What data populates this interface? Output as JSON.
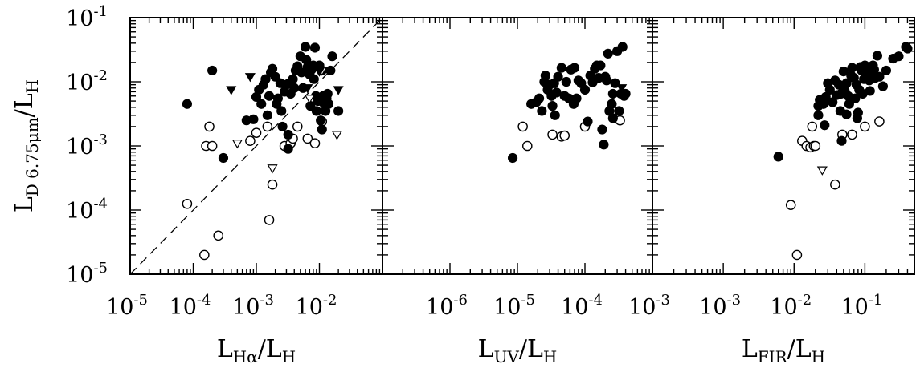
{
  "chart_data": [
    {
      "type": "scatter",
      "x_scale": "log",
      "y_scale": "log",
      "xlim": [
        1e-05,
        0.1
      ],
      "ylim": [
        1e-05,
        0.1
      ],
      "xticks": [
        {
          "value": 1e-05,
          "base": "10",
          "exp": "-5"
        },
        {
          "value": 0.0001,
          "base": "10",
          "exp": "-4"
        },
        {
          "value": 0.001,
          "base": "10",
          "exp": "-3"
        },
        {
          "value": 0.01,
          "base": "10",
          "exp": "-2"
        }
      ],
      "yticks": [
        {
          "value": 1e-05,
          "base": "10",
          "exp": "-5"
        },
        {
          "value": 0.0001,
          "base": "10",
          "exp": "-4"
        },
        {
          "value": 0.001,
          "base": "10",
          "exp": "-3"
        },
        {
          "value": 0.01,
          "base": "10",
          "exp": "-2"
        },
        {
          "value": 0.1,
          "base": "10",
          "exp": "-1"
        }
      ],
      "xlabel": {
        "pre": "L",
        "sub": "Hα",
        "post": "/L",
        "sub2": "H"
      },
      "ylabel": {
        "pre": "L",
        "sub": "D 6.75μm",
        "post": "/L",
        "sub2": "H"
      },
      "reference_line": "y = x",
      "filled": [
        [
          8e-05,
          0.0045
        ],
        [
          0.0002,
          0.015
        ],
        [
          0.0003,
          0.00065
        ],
        [
          0.0007,
          0.0025
        ],
        [
          0.0009,
          0.0026
        ],
        [
          0.001,
          0.0058
        ],
        [
          0.0011,
          0.0075
        ],
        [
          0.0012,
          0.0045
        ],
        [
          0.0013,
          0.009
        ],
        [
          0.0014,
          0.011
        ],
        [
          0.0015,
          0.003
        ],
        [
          0.0016,
          0.006
        ],
        [
          0.0017,
          0.014
        ],
        [
          0.0018,
          0.016
        ],
        [
          0.002,
          0.012
        ],
        [
          0.0021,
          0.0045
        ],
        [
          0.0022,
          0.0055
        ],
        [
          0.0024,
          0.0095
        ],
        [
          0.0025,
          0.0035
        ],
        [
          0.0026,
          0.002
        ],
        [
          0.0028,
          0.007
        ],
        [
          0.003,
          0.009
        ],
        [
          0.0032,
          0.0015
        ],
        [
          0.0033,
          0.0095
        ],
        [
          0.0035,
          0.0065
        ],
        [
          0.0038,
          0.011
        ],
        [
          0.004,
          0.008
        ],
        [
          0.0042,
          0.015
        ],
        [
          0.0045,
          0.0175
        ],
        [
          0.005,
          0.025
        ],
        [
          0.0052,
          0.014
        ],
        [
          0.0055,
          0.008
        ],
        [
          0.006,
          0.035
        ],
        [
          0.0062,
          0.022
        ],
        [
          0.0065,
          0.017
        ],
        [
          0.007,
          0.013
        ],
        [
          0.0072,
          0.0042
        ],
        [
          0.0075,
          0.0155
        ],
        [
          0.008,
          0.018
        ],
        [
          0.0082,
          0.011
        ],
        [
          0.0085,
          0.034
        ],
        [
          0.0088,
          0.006
        ],
        [
          0.009,
          0.0035
        ],
        [
          0.0095,
          0.005
        ],
        [
          0.01,
          0.018
        ],
        [
          0.0105,
          0.0025
        ],
        [
          0.011,
          0.015
        ],
        [
          0.0115,
          0.006
        ],
        [
          0.012,
          0.0045
        ],
        [
          0.0125,
          0.0035
        ],
        [
          0.013,
          0.0055
        ],
        [
          0.0135,
          0.0065
        ],
        [
          0.014,
          0.0045
        ],
        [
          0.015,
          0.015
        ],
        [
          0.016,
          0.025
        ],
        [
          0.011,
          0.0018
        ],
        [
          0.02,
          0.0035
        ],
        [
          0.0032,
          0.0009
        ]
      ],
      "open": [
        [
          8e-05,
          0.000125
        ],
        [
          0.00015,
          2e-05
        ],
        [
          0.00025,
          4e-05
        ],
        [
          0.00016,
          0.001
        ],
        [
          0.0002,
          0.001
        ],
        [
          0.00018,
          0.002
        ],
        [
          0.0008,
          0.0012
        ],
        [
          0.001,
          0.0016
        ],
        [
          0.0015,
          0.002
        ],
        [
          0.0016,
          7e-05
        ],
        [
          0.0018,
          0.00025
        ],
        [
          0.0028,
          0.001
        ],
        [
          0.0035,
          0.0011
        ],
        [
          0.0038,
          0.0013
        ],
        [
          0.0045,
          0.002
        ],
        [
          0.0065,
          0.0013
        ],
        [
          0.0085,
          0.0011
        ],
        [
          0.011,
          0.0024
        ]
      ],
      "down_filled": [
        [
          0.0004,
          0.0075
        ],
        [
          0.0008,
          0.012
        ],
        [
          0.0065,
          0.008
        ],
        [
          0.01,
          0.0145
        ],
        [
          0.02,
          0.0075
        ]
      ],
      "down_open": [
        [
          0.0005,
          0.0011
        ],
        [
          0.0018,
          0.00045
        ],
        [
          0.007,
          0.0055
        ],
        [
          0.011,
          0.015
        ],
        [
          0.019,
          0.0015
        ]
      ]
    },
    {
      "type": "scatter",
      "x_scale": "log",
      "y_scale": "log",
      "xlim": [
        1e-07,
        0.001
      ],
      "ylim": [
        1e-05,
        0.1
      ],
      "xticks": [
        {
          "value": 1e-06,
          "base": "10",
          "exp": "-6"
        },
        {
          "value": 1e-05,
          "base": "10",
          "exp": "-5"
        },
        {
          "value": 0.0001,
          "base": "10",
          "exp": "-4"
        },
        {
          "value": 0.001,
          "base": "10",
          "exp": "-3"
        }
      ],
      "yticks": [],
      "xlabel": {
        "pre": "L",
        "sub": "UV",
        "post": "/L",
        "sub2": "H"
      },
      "filled": [
        [
          8.5e-06,
          0.00065
        ],
        [
          1.6e-05,
          0.0045
        ],
        [
          1.9e-05,
          0.0048
        ],
        [
          2.1e-05,
          0.0055
        ],
        [
          2.3e-05,
          0.0035
        ],
        [
          2.5e-05,
          0.01
        ],
        [
          2.6e-05,
          0.0125
        ],
        [
          2.8e-05,
          0.0075
        ],
        [
          3e-05,
          0.009
        ],
        [
          3.2e-05,
          0.006
        ],
        [
          3.3e-05,
          0.0042
        ],
        [
          3.5e-05,
          0.0095
        ],
        [
          3.6e-05,
          0.003
        ],
        [
          3.8e-05,
          0.0068
        ],
        [
          4e-05,
          0.012
        ],
        [
          4.5e-05,
          0.0165
        ],
        [
          5e-05,
          0.006
        ],
        [
          5.3e-05,
          0.01
        ],
        [
          5.8e-05,
          0.0055
        ],
        [
          6.2e-05,
          0.0155
        ],
        [
          6.8e-05,
          0.0045
        ],
        [
          7e-05,
          0.0165
        ],
        [
          7.5e-05,
          0.0055
        ],
        [
          8e-05,
          0.0105
        ],
        [
          8.8e-05,
          0.0095
        ],
        [
          0.0001,
          0.0075
        ],
        [
          0.00011,
          0.0024
        ],
        [
          0.00012,
          0.0125
        ],
        [
          0.00013,
          0.0098
        ],
        [
          0.00014,
          0.016
        ],
        [
          0.00015,
          0.018
        ],
        [
          0.00016,
          0.0115
        ],
        [
          0.00017,
          0.018
        ],
        [
          0.00018,
          0.0018
        ],
        [
          0.0002,
          0.012
        ],
        [
          0.00021,
          0.0105
        ],
        [
          0.00022,
          0.0275
        ],
        [
          0.00023,
          0.0035
        ],
        [
          0.00025,
          0.0045
        ],
        [
          0.00026,
          0.0065
        ],
        [
          0.00028,
          0.0095
        ],
        [
          0.0003,
          0.03
        ],
        [
          0.00032,
          0.0035
        ],
        [
          0.00034,
          0.0065
        ],
        [
          0.00036,
          0.035
        ],
        [
          0.00038,
          0.006
        ],
        [
          0.0004,
          0.0065
        ],
        [
          0.00019,
          0.00105
        ],
        [
          0.00026,
          0.0027
        ]
      ],
      "open": [
        [
          1.2e-05,
          0.002
        ],
        [
          1.4e-05,
          0.001
        ],
        [
          3.3e-05,
          0.0015
        ],
        [
          4.5e-05,
          0.0014
        ],
        [
          5e-05,
          0.00145
        ],
        [
          0.0001,
          0.002
        ],
        [
          0.00033,
          0.0025
        ]
      ],
      "down_filled": [
        [
          0.00035,
          0.008
        ]
      ],
      "down_open": []
    },
    {
      "type": "scatter",
      "x_scale": "log",
      "y_scale": "log",
      "xlim": [
        0.0001,
        0.5
      ],
      "ylim": [
        1e-05,
        0.1
      ],
      "xticks": [
        {
          "value": 0.001,
          "base": "10",
          "exp": "-3"
        },
        {
          "value": 0.01,
          "base": "10",
          "exp": "-2"
        },
        {
          "value": 0.1,
          "base": "10",
          "exp": "-1"
        }
      ],
      "yticks": [],
      "xlabel": {
        "pre": "L",
        "sub": "FIR",
        "post": "/L",
        "sub2": "H"
      },
      "filled": [
        [
          0.006,
          0.00068
        ],
        [
          0.022,
          0.003
        ],
        [
          0.023,
          0.0052
        ],
        [
          0.026,
          0.0045
        ],
        [
          0.028,
          0.0058
        ],
        [
          0.03,
          0.0095
        ],
        [
          0.032,
          0.0075
        ],
        [
          0.035,
          0.0048
        ],
        [
          0.038,
          0.0105
        ],
        [
          0.04,
          0.0062
        ],
        [
          0.043,
          0.009
        ],
        [
          0.045,
          0.0035
        ],
        [
          0.046,
          0.0065
        ],
        [
          0.047,
          0.0012
        ],
        [
          0.05,
          0.0145
        ],
        [
          0.052,
          0.0072
        ],
        [
          0.055,
          0.0095
        ],
        [
          0.058,
          0.006
        ],
        [
          0.06,
          0.0045
        ],
        [
          0.064,
          0.0125
        ],
        [
          0.066,
          0.0165
        ],
        [
          0.07,
          0.0115
        ],
        [
          0.073,
          0.0055
        ],
        [
          0.076,
          0.009
        ],
        [
          0.078,
          0.0027
        ],
        [
          0.08,
          0.0033
        ],
        [
          0.083,
          0.0075
        ],
        [
          0.086,
          0.017
        ],
        [
          0.09,
          0.015
        ],
        [
          0.093,
          0.0065
        ],
        [
          0.097,
          0.011
        ],
        [
          0.1,
          0.018
        ],
        [
          0.105,
          0.0145
        ],
        [
          0.11,
          0.0125
        ],
        [
          0.115,
          0.0105
        ],
        [
          0.118,
          0.0072
        ],
        [
          0.12,
          0.017
        ],
        [
          0.13,
          0.018
        ],
        [
          0.135,
          0.0155
        ],
        [
          0.14,
          0.0115
        ],
        [
          0.15,
          0.0255
        ],
        [
          0.16,
          0.012
        ],
        [
          0.18,
          0.0085
        ],
        [
          0.2,
          0.015
        ],
        [
          0.25,
          0.023
        ],
        [
          0.3,
          0.025
        ],
        [
          0.38,
          0.035
        ],
        [
          0.4,
          0.033
        ],
        [
          0.022,
          0.0042
        ],
        [
          0.027,
          0.0021
        ],
        [
          0.055,
          0.0031
        ]
      ],
      "open": [
        [
          0.009,
          0.00012
        ],
        [
          0.011,
          2e-05
        ],
        [
          0.013,
          0.0012
        ],
        [
          0.015,
          0.001
        ],
        [
          0.017,
          0.00095
        ],
        [
          0.018,
          0.002
        ],
        [
          0.019,
          0.001
        ],
        [
          0.02,
          0.001
        ],
        [
          0.038,
          0.00025
        ],
        [
          0.048,
          0.0015
        ],
        [
          0.066,
          0.0015
        ],
        [
          0.1,
          0.002
        ],
        [
          0.16,
          0.0024
        ]
      ],
      "down_filled": [],
      "down_open": [
        [
          0.025,
          0.00042
        ]
      ]
    }
  ]
}
